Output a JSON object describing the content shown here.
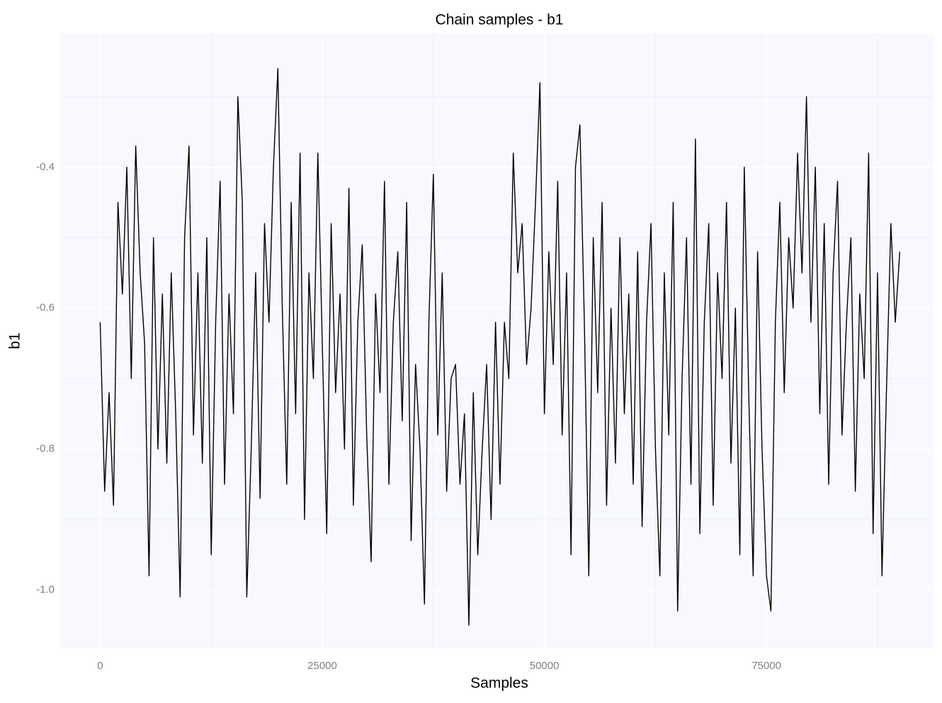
{
  "chart_data": {
    "type": "line",
    "title": "Chain samples - b1",
    "xlabel": "Samples",
    "ylabel": "b1",
    "color": "#000000",
    "background": "#f8f8ff",
    "grid": true,
    "xlim": [
      -4500,
      93800
    ],
    "ylim": [
      -1.083,
      -0.21
    ],
    "xticks": [
      0,
      25000,
      50000,
      75000
    ],
    "yticks": [
      {
        "value": -1,
        "label": "-1.0"
      },
      -0.8,
      -0.6,
      -0.4
    ],
    "x": [
      0,
      500,
      1000,
      1500,
      2000,
      2500,
      3000,
      3500,
      4000,
      4500,
      5000,
      5500,
      6000,
      6500,
      7000,
      7500,
      8000,
      8500,
      9000,
      9500,
      10000,
      10500,
      11000,
      11500,
      12000,
      12500,
      13000,
      13500,
      14000,
      14500,
      15000,
      15500,
      16000,
      16500,
      17000,
      17500,
      18000,
      18500,
      19000,
      19500,
      20000,
      20500,
      21000,
      21500,
      22000,
      22500,
      23000,
      23500,
      24000,
      24500,
      25000,
      25500,
      26000,
      26500,
      27000,
      27500,
      28000,
      28500,
      29000,
      29500,
      30000,
      30500,
      31000,
      31500,
      32000,
      32500,
      33000,
      33500,
      34000,
      34500,
      35000,
      35500,
      36000,
      36500,
      37000,
      37500,
      38000,
      38500,
      39000,
      39500,
      40000,
      40500,
      41000,
      41500,
      42000,
      42500,
      43000,
      43500,
      44000,
      44500,
      45000,
      45500,
      46000,
      46500,
      47000,
      47500,
      48000,
      48500,
      49000,
      49500,
      50000,
      50500,
      51000,
      51500,
      52000,
      52500,
      53000,
      53500,
      54000,
      54500,
      55000,
      55500,
      56000,
      56500,
      57000,
      57500,
      58000,
      58500,
      59000,
      59500,
      60000,
      60500,
      61000,
      61500,
      62000,
      62500,
      63000,
      63500,
      64000,
      64500,
      65000,
      65500,
      66000,
      66500,
      67000,
      67500,
      68000,
      68500,
      69000,
      69500,
      70000,
      70500,
      71000,
      71500,
      72000,
      72500,
      73000,
      73500,
      74000,
      74500,
      75000,
      75500,
      76000,
      76500,
      77000,
      77500,
      78000,
      78500,
      79000,
      79500,
      80000,
      80500,
      81000,
      81500,
      82000,
      82500,
      83000,
      83500,
      84000,
      84500,
      85000,
      85500,
      86000,
      86500,
      87000,
      87500,
      88000,
      88500,
      89000,
      89500,
      90000
    ],
    "values": [
      -0.62,
      -0.86,
      -0.72,
      -0.88,
      -0.45,
      -0.58,
      -0.4,
      -0.7,
      -0.37,
      -0.55,
      -0.65,
      -0.98,
      -0.5,
      -0.8,
      -0.58,
      -0.82,
      -0.55,
      -0.75,
      -1.01,
      -0.5,
      -0.37,
      -0.78,
      -0.55,
      -0.82,
      -0.5,
      -0.95,
      -0.62,
      -0.42,
      -0.85,
      -0.58,
      -0.75,
      -0.3,
      -0.45,
      -1.01,
      -0.8,
      -0.55,
      -0.87,
      -0.48,
      -0.62,
      -0.4,
      -0.26,
      -0.6,
      -0.85,
      -0.45,
      -0.75,
      -0.38,
      -0.9,
      -0.55,
      -0.7,
      -0.38,
      -0.65,
      -0.92,
      -0.48,
      -0.72,
      -0.58,
      -0.8,
      -0.43,
      -0.88,
      -0.62,
      -0.51,
      -0.78,
      -0.96,
      -0.58,
      -0.72,
      -0.42,
      -0.85,
      -0.62,
      -0.52,
      -0.76,
      -0.45,
      -0.93,
      -0.68,
      -0.8,
      -1.02,
      -0.62,
      -0.41,
      -0.78,
      -0.55,
      -0.86,
      -0.7,
      -0.68,
      -0.85,
      -0.75,
      -1.05,
      -0.72,
      -0.95,
      -0.8,
      -0.68,
      -0.9,
      -0.62,
      -0.85,
      -0.62,
      -0.7,
      -0.38,
      -0.55,
      -0.48,
      -0.68,
      -0.6,
      -0.45,
      -0.28,
      -0.75,
      -0.52,
      -0.68,
      -0.42,
      -0.78,
      -0.55,
      -0.95,
      -0.4,
      -0.34,
      -0.62,
      -0.98,
      -0.5,
      -0.72,
      -0.45,
      -0.88,
      -0.6,
      -0.82,
      -0.5,
      -0.75,
      -0.58,
      -0.85,
      -0.52,
      -0.91,
      -0.62,
      -0.48,
      -0.8,
      -0.98,
      -0.55,
      -0.78,
      -0.45,
      -1.03,
      -0.7,
      -0.5,
      -0.85,
      -0.36,
      -0.92,
      -0.62,
      -0.48,
      -0.88,
      -0.55,
      -0.7,
      -0.45,
      -0.82,
      -0.6,
      -0.95,
      -0.4,
      -0.72,
      -0.98,
      -0.52,
      -0.8,
      -0.98,
      -1.03,
      -0.62,
      -0.45,
      -0.72,
      -0.5,
      -0.6,
      -0.38,
      -0.55,
      -0.3,
      -0.62,
      -0.4,
      -0.75,
      -0.48,
      -0.85,
      -0.55,
      -0.42,
      -0.78,
      -0.62,
      -0.5,
      -0.86,
      -0.58,
      -0.7,
      -0.38,
      -0.92,
      -0.55,
      -0.98,
      -0.72,
      -0.48,
      -0.62,
      -0.52
    ]
  }
}
